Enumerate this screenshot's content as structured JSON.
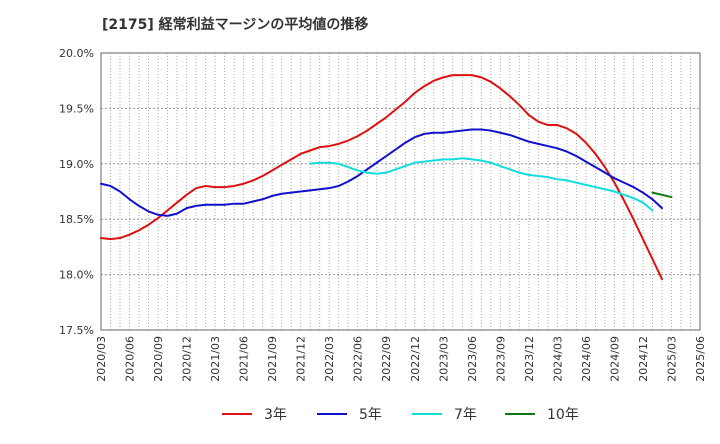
{
  "chart_data": {
    "type": "line",
    "title": "[2175]  経常利益マージンの平均値の推移",
    "xlabel": "",
    "ylabel": "",
    "ylim": [
      17.5,
      20.0
    ],
    "yticks": [
      17.5,
      18.0,
      18.5,
      19.0,
      19.5,
      20.0
    ],
    "ytick_labels": [
      "17.5%",
      "18.0%",
      "18.5%",
      "19.0%",
      "19.5%",
      "20.0%"
    ],
    "x_categories": [
      "2020/03",
      "2020/04",
      "2020/05",
      "2020/06",
      "2020/07",
      "2020/08",
      "2020/09",
      "2020/10",
      "2020/11",
      "2020/12",
      "2021/01",
      "2021/02",
      "2021/03",
      "2021/04",
      "2021/05",
      "2021/06",
      "2021/07",
      "2021/08",
      "2021/09",
      "2021/10",
      "2021/11",
      "2021/12",
      "2022/01",
      "2022/02",
      "2022/03",
      "2022/04",
      "2022/05",
      "2022/06",
      "2022/07",
      "2022/08",
      "2022/09",
      "2022/10",
      "2022/11",
      "2022/12",
      "2023/01",
      "2023/02",
      "2023/03",
      "2023/04",
      "2023/05",
      "2023/06",
      "2023/07",
      "2023/08",
      "2023/09",
      "2023/10",
      "2023/11",
      "2023/12",
      "2024/01",
      "2024/02",
      "2024/03",
      "2024/04",
      "2024/05",
      "2024/06",
      "2024/07",
      "2024/08",
      "2024/09",
      "2024/10",
      "2024/11",
      "2024/12",
      "2025/01",
      "2025/02",
      "2025/03",
      "2025/04",
      "2025/05",
      "2025/06"
    ],
    "xtick_labels": [
      "2020/03",
      "2020/06",
      "2020/09",
      "2020/12",
      "2021/03",
      "2021/06",
      "2021/09",
      "2021/12",
      "2022/03",
      "2022/06",
      "2022/09",
      "2022/12",
      "2023/03",
      "2023/06",
      "2023/09",
      "2023/12",
      "2024/03",
      "2024/06",
      "2024/09",
      "2024/12",
      "2025/03",
      "2025/06"
    ],
    "grid": true,
    "legend_position": "bottom",
    "series": [
      {
        "name": "3年",
        "color": "#dd1111",
        "start": "2020/03",
        "values": [
          18.33,
          18.32,
          18.33,
          18.36,
          18.4,
          18.45,
          18.51,
          18.58,
          18.65,
          18.72,
          18.78,
          18.8,
          18.79,
          18.79,
          18.8,
          18.82,
          18.85,
          18.89,
          18.94,
          18.99,
          19.04,
          19.09,
          19.12,
          19.15,
          19.16,
          19.18,
          19.21,
          19.25,
          19.3,
          19.36,
          19.42,
          19.49,
          19.56,
          19.64,
          19.7,
          19.75,
          19.78,
          19.8,
          19.8,
          19.8,
          19.78,
          19.74,
          19.68,
          19.61,
          19.53,
          19.44,
          19.38,
          19.35,
          19.35,
          19.32,
          19.27,
          19.19,
          19.09,
          18.97,
          18.83,
          18.67,
          18.5,
          18.32,
          18.14,
          17.96
        ]
      },
      {
        "name": "5年",
        "color": "#1111cc",
        "start": "2020/03",
        "values": [
          18.82,
          18.8,
          18.75,
          18.68,
          18.62,
          18.57,
          18.54,
          18.53,
          18.55,
          18.6,
          18.62,
          18.63,
          18.63,
          18.63,
          18.64,
          18.64,
          18.66,
          18.68,
          18.71,
          18.73,
          18.74,
          18.75,
          18.76,
          18.77,
          18.78,
          18.8,
          18.84,
          18.89,
          18.95,
          19.01,
          19.07,
          19.13,
          19.19,
          19.24,
          19.27,
          19.28,
          19.28,
          19.29,
          19.3,
          19.31,
          19.31,
          19.3,
          19.28,
          19.26,
          19.23,
          19.2,
          19.18,
          19.16,
          19.14,
          19.11,
          19.07,
          19.02,
          18.97,
          18.92,
          18.87,
          18.83,
          18.79,
          18.74,
          18.68,
          18.6
        ]
      },
      {
        "name": "7年",
        "color": "#11dddd",
        "start": "2022/01",
        "values": [
          19.0,
          19.01,
          19.01,
          19.0,
          18.97,
          18.94,
          18.92,
          18.91,
          18.92,
          18.95,
          18.98,
          19.01,
          19.02,
          19.03,
          19.04,
          19.04,
          19.05,
          19.04,
          19.03,
          19.01,
          18.98,
          18.95,
          18.92,
          18.9,
          18.89,
          18.88,
          18.86,
          18.85,
          18.83,
          18.81,
          18.79,
          18.77,
          18.75,
          18.72,
          18.69,
          18.65,
          18.58
        ]
      },
      {
        "name": "10年",
        "color": "#117711",
        "start": "2025/01",
        "values": [
          18.74,
          18.72,
          18.7
        ]
      }
    ]
  }
}
